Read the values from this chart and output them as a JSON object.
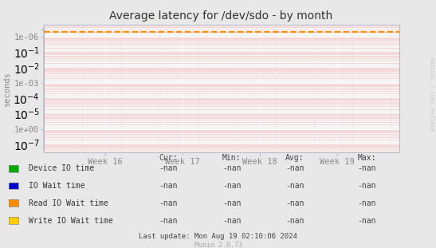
{
  "title": "Average latency for /dev/sdo - by month",
  "ylabel": "seconds",
  "background_color": "#e8e8e8",
  "plot_bg_color": "#f5f5f5",
  "grid_major_color": "#ffffff",
  "grid_minor_color": "#f5cccc",
  "x_ticks": [
    16,
    17,
    18,
    19
  ],
  "x_tick_labels": [
    "Week 16",
    "Week 17",
    "Week 18",
    "Week 19"
  ],
  "x_min": 15.2,
  "x_max": 19.8,
  "y_min": 3e-08,
  "y_max": 6.0,
  "dashed_line_y": 2.0,
  "dashed_line_color": "#ff8c00",
  "dashed_line_style": "--",
  "axis_spine_color": "#bbbbcc",
  "tick_color": "#888888",
  "title_fontsize": 10,
  "label_fontsize": 7.5,
  "tick_fontsize": 7.5,
  "legend_items": [
    {
      "label": "Device IO time",
      "color": "#00aa00"
    },
    {
      "label": "IO Wait time",
      "color": "#0000cc"
    },
    {
      "label": "Read IO Wait time",
      "color": "#ff8c00"
    },
    {
      "label": "Write IO Wait time",
      "color": "#ffcc00"
    }
  ],
  "legend_cur": [
    "-nan",
    "-nan",
    "-nan",
    "-nan"
  ],
  "legend_min": [
    "-nan",
    "-nan",
    "-nan",
    "-nan"
  ],
  "legend_avg": [
    "-nan",
    "-nan",
    "-nan",
    "-nan"
  ],
  "legend_max": [
    "-nan",
    "-nan",
    "-nan",
    "-nan"
  ],
  "footer_text": "Last update: Mon Aug 19 02:10:06 2024",
  "munin_text": "Munin 2.0.73",
  "watermark": "RRDTOOL / TOBI OETIKER"
}
